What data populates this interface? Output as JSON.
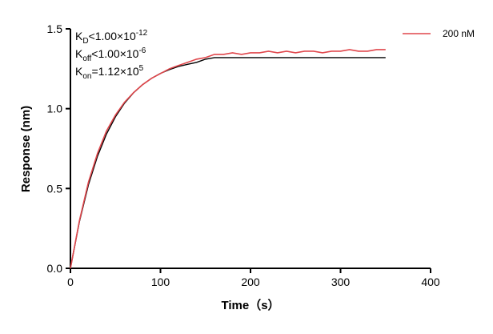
{
  "chart_data": {
    "type": "line",
    "x_label": "Time（s）",
    "y_label": "Response (nm)",
    "annotations": [
      {
        "symbol": "K",
        "subscript": "D",
        "text": "<1.00×10",
        "superscript": "-12"
      },
      {
        "symbol": "K",
        "subscript": "off",
        "text": "<1.00×10",
        "superscript": "-6"
      },
      {
        "symbol": "K",
        "subscript": "on",
        "text": "=1.12×10",
        "superscript": "5"
      }
    ],
    "x": [
      0,
      10,
      20,
      30,
      40,
      50,
      60,
      70,
      80,
      90,
      100,
      110,
      120,
      130,
      140,
      150,
      160,
      170,
      180,
      190,
      200,
      210,
      220,
      230,
      240,
      250,
      260,
      270,
      280,
      290,
      300,
      310,
      320,
      330,
      340,
      350
    ],
    "series": [
      {
        "name": "200 nM",
        "color": "#e0474c",
        "values": [
          0,
          0.3,
          0.54,
          0.72,
          0.86,
          0.96,
          1.04,
          1.1,
          1.15,
          1.19,
          1.22,
          1.25,
          1.27,
          1.29,
          1.31,
          1.32,
          1.34,
          1.34,
          1.35,
          1.34,
          1.35,
          1.35,
          1.36,
          1.35,
          1.36,
          1.35,
          1.36,
          1.36,
          1.35,
          1.36,
          1.36,
          1.37,
          1.36,
          1.36,
          1.37,
          1.37
        ]
      },
      {
        "color": "#000000",
        "values": [
          0,
          0.294,
          0.523,
          0.702,
          0.841,
          0.949,
          1.034,
          1.099,
          1.15,
          1.19,
          1.221,
          1.245,
          1.264,
          1.278,
          1.29,
          1.31,
          1.32,
          1.32,
          1.32,
          1.32,
          1.32,
          1.32,
          1.32,
          1.32,
          1.32,
          1.32,
          1.32,
          1.32,
          1.32,
          1.32,
          1.32,
          1.32,
          1.32,
          1.32,
          1.32,
          1.32
        ]
      }
    ],
    "xlim": [
      0,
      400
    ],
    "xticks": [
      0,
      100,
      200,
      300,
      400
    ],
    "ylim": [
      0,
      1.5
    ],
    "yticks": [
      {
        "value": 0,
        "label": "0.0"
      },
      0.5,
      {
        "value": 1,
        "label": "1.0"
      },
      1.5
    ],
    "legend": "upper right"
  }
}
